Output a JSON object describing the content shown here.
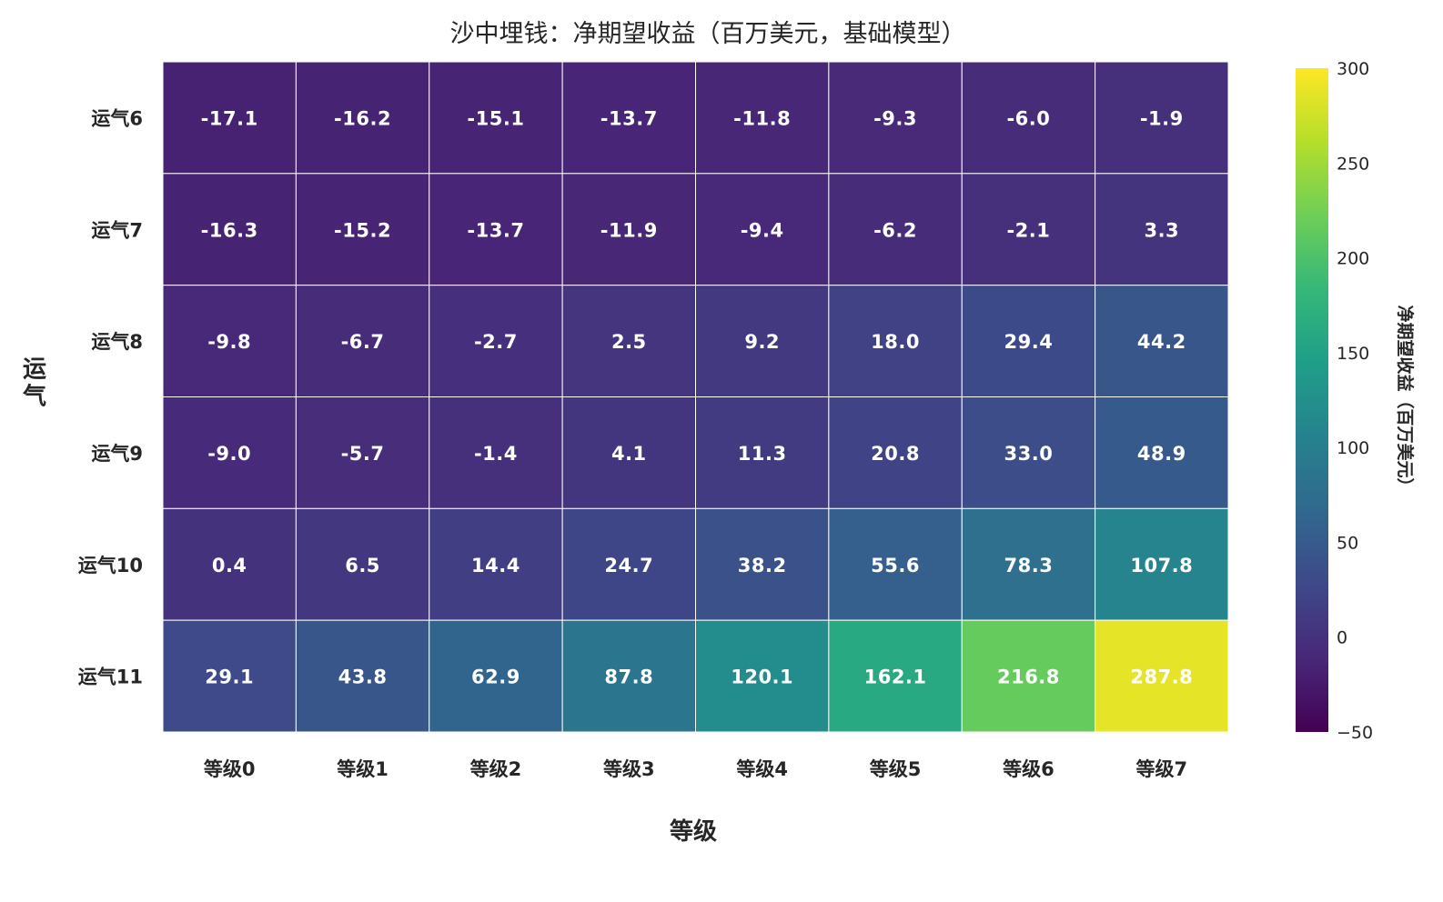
{
  "chart_data": {
    "type": "heatmap",
    "title": "沙中埋钱：净期望收益（百万美元，基础模型）",
    "xlabel": "等级",
    "ylabel": "运气",
    "x_categories": [
      "等级0",
      "等级1",
      "等级2",
      "等级3",
      "等级4",
      "等级5",
      "等级6",
      "等级7"
    ],
    "y_categories": [
      "运气6",
      "运气7",
      "运气8",
      "运气9",
      "运气10",
      "运气11"
    ],
    "values": [
      [
        -17.1,
        -16.2,
        -15.1,
        -13.7,
        -11.8,
        -9.3,
        -6.0,
        -1.9
      ],
      [
        -16.3,
        -15.2,
        -13.7,
        -11.9,
        -9.4,
        -6.2,
        -2.1,
        3.3
      ],
      [
        -9.8,
        -6.7,
        -2.7,
        2.5,
        9.2,
        18.0,
        29.4,
        44.2
      ],
      [
        -9.0,
        -5.7,
        -1.4,
        4.1,
        11.3,
        20.8,
        33.0,
        48.9
      ],
      [
        0.4,
        6.5,
        14.4,
        24.7,
        38.2,
        55.6,
        78.3,
        107.8
      ],
      [
        29.1,
        43.8,
        62.9,
        87.8,
        120.1,
        162.1,
        216.8,
        287.8
      ]
    ],
    "value_labels": [
      [
        "-17.1",
        "-16.2",
        "-15.1",
        "-13.7",
        "-11.8",
        "-9.3",
        "-6.0",
        "-1.9"
      ],
      [
        "-16.3",
        "-15.2",
        "-13.7",
        "-11.9",
        "-9.4",
        "-6.2",
        "-2.1",
        "3.3"
      ],
      [
        "-9.8",
        "-6.7",
        "-2.7",
        "2.5",
        "9.2",
        "18.0",
        "29.4",
        "44.2"
      ],
      [
        "-9.0",
        "-5.7",
        "-1.4",
        "4.1",
        "11.3",
        "20.8",
        "33.0",
        "48.9"
      ],
      [
        "0.4",
        "6.5",
        "14.4",
        "24.7",
        "38.2",
        "55.6",
        "78.3",
        "107.8"
      ],
      [
        "29.1",
        "43.8",
        "62.9",
        "87.8",
        "120.1",
        "162.1",
        "216.8",
        "287.8"
      ]
    ],
    "colormap": "viridis",
    "color_range": [
      -50,
      300
    ],
    "colorbar": {
      "label": "净期望收益（百万美元）",
      "ticks": [
        -50,
        0,
        50,
        100,
        150,
        200,
        250,
        300
      ],
      "tick_labels": [
        "−50",
        "0",
        "50",
        "100",
        "150",
        "200",
        "250",
        "300"
      ]
    },
    "grid": false,
    "legend": "none"
  },
  "colors": {
    "viridis_stops": [
      "#440154",
      "#482878",
      "#3e4989",
      "#31688e",
      "#26828e",
      "#1f9e89",
      "#35b779",
      "#6ece58",
      "#b5de2b",
      "#fde725"
    ],
    "cell_text": "#ffffff",
    "cell_border": "#ffffff",
    "text": "#262626"
  }
}
